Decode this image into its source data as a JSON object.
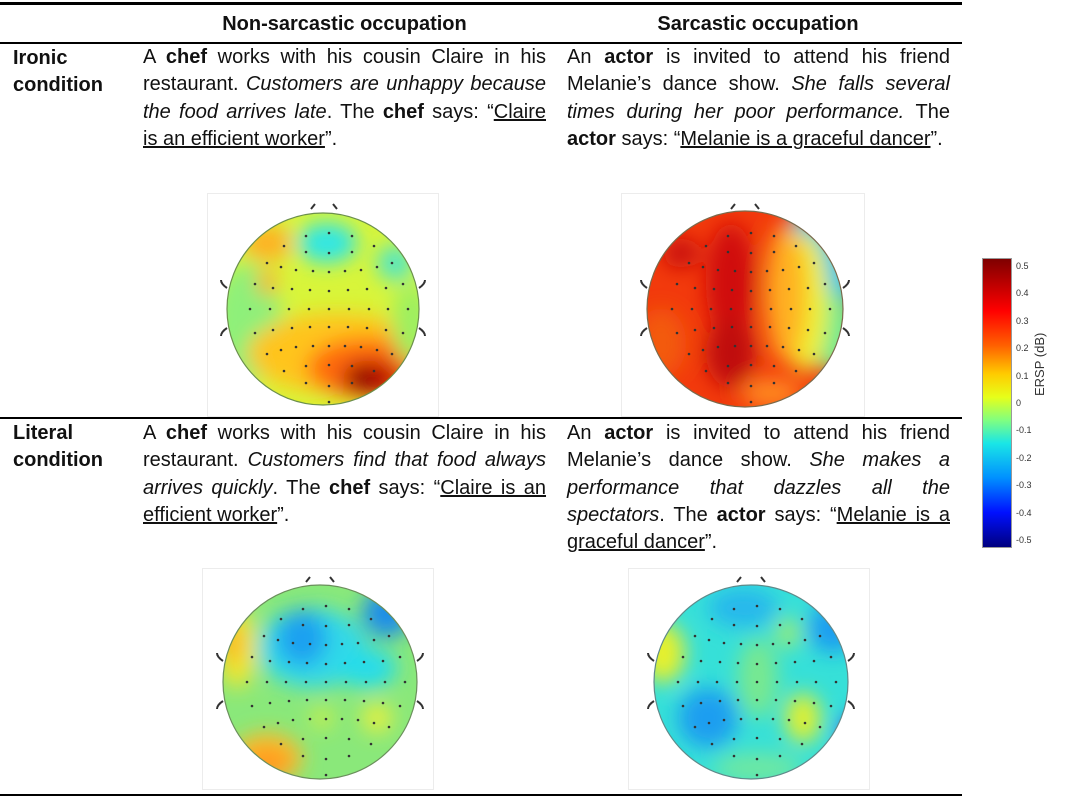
{
  "table": {
    "columns": [
      "",
      "Non-sarcastic occupation",
      "Sarcastic occupation"
    ],
    "rows": [
      {
        "label_line1": "Ironic",
        "label_line2": "condition",
        "non_sarcastic": {
          "segments": [
            {
              "t": "A ",
              "s": "n"
            },
            {
              "t": "chef",
              "s": "b"
            },
            {
              "t": " works with his cousin Claire in his restaurant. ",
              "s": "n"
            },
            {
              "t": "Customers are unhappy because the food arrives late",
              "s": "i"
            },
            {
              "t": ". The ",
              "s": "n"
            },
            {
              "t": "chef",
              "s": "b"
            },
            {
              "t": " says: “",
              "s": "n"
            },
            {
              "t": "Claire is an efficient worker",
              "s": "u"
            },
            {
              "t": "”.",
              "s": "n"
            }
          ],
          "topomap": "ironic-non-sarcastic"
        },
        "sarcastic": {
          "segments": [
            {
              "t": "An ",
              "s": "n"
            },
            {
              "t": "actor",
              "s": "b"
            },
            {
              "t": " is invited to attend his friend Melanie’s dance show. ",
              "s": "n"
            },
            {
              "t": "She falls several times during her poor performance.",
              "s": "i"
            },
            {
              "t": " The ",
              "s": "n"
            },
            {
              "t": "actor",
              "s": "b"
            },
            {
              "t": " says: “",
              "s": "n"
            },
            {
              "t": "Melanie is a graceful dancer",
              "s": "u"
            },
            {
              "t": "”.",
              "s": "n"
            }
          ],
          "topomap": "ironic-sarcastic"
        }
      },
      {
        "label_line1": "Literal",
        "label_line2": "condition",
        "non_sarcastic": {
          "segments": [
            {
              "t": "A ",
              "s": "n"
            },
            {
              "t": "chef",
              "s": "b"
            },
            {
              "t": " works with his cousin Claire in his restaurant. ",
              "s": "n"
            },
            {
              "t": "Customers find that food always arrives quickly",
              "s": "i"
            },
            {
              "t": ". The ",
              "s": "n"
            },
            {
              "t": "chef",
              "s": "b"
            },
            {
              "t": " says: “",
              "s": "n"
            },
            {
              "t": "Claire is an efficient worker",
              "s": "u"
            },
            {
              "t": "”.",
              "s": "n"
            }
          ],
          "topomap": "literal-non-sarcastic"
        },
        "sarcastic": {
          "segments": [
            {
              "t": "An ",
              "s": "n"
            },
            {
              "t": "actor",
              "s": "b"
            },
            {
              "t": " is invited to attend his friend Melanie’s dance show. ",
              "s": "n"
            },
            {
              "t": "She makes a performance that dazzles all the spectators",
              "s": "i"
            },
            {
              "t": ". The ",
              "s": "n"
            },
            {
              "t": "actor",
              "s": "b"
            },
            {
              "t": " says: “",
              "s": "n"
            },
            {
              "t": "Melanie is a graceful dancer",
              "s": "u"
            },
            {
              "t": "”.",
              "s": "n"
            }
          ],
          "topomap": "literal-sarcastic"
        }
      }
    ]
  },
  "colorbar": {
    "label": "ERSP (dB)",
    "ticks": [
      "0.5",
      "0.4",
      "0.3",
      "0.2",
      "0.1",
      "0",
      "-0.1",
      "-0.2",
      "-0.3",
      "-0.4",
      "-0.5"
    ],
    "range": [
      -0.5,
      0.5
    ],
    "colors": {
      "max": "#7f0000",
      "high": "#ff0000",
      "mid_high": "#ffcc00",
      "zero": "#80ff80",
      "mid_low": "#1ae6e6",
      "low": "#0010ff",
      "min": "#00007f"
    }
  }
}
